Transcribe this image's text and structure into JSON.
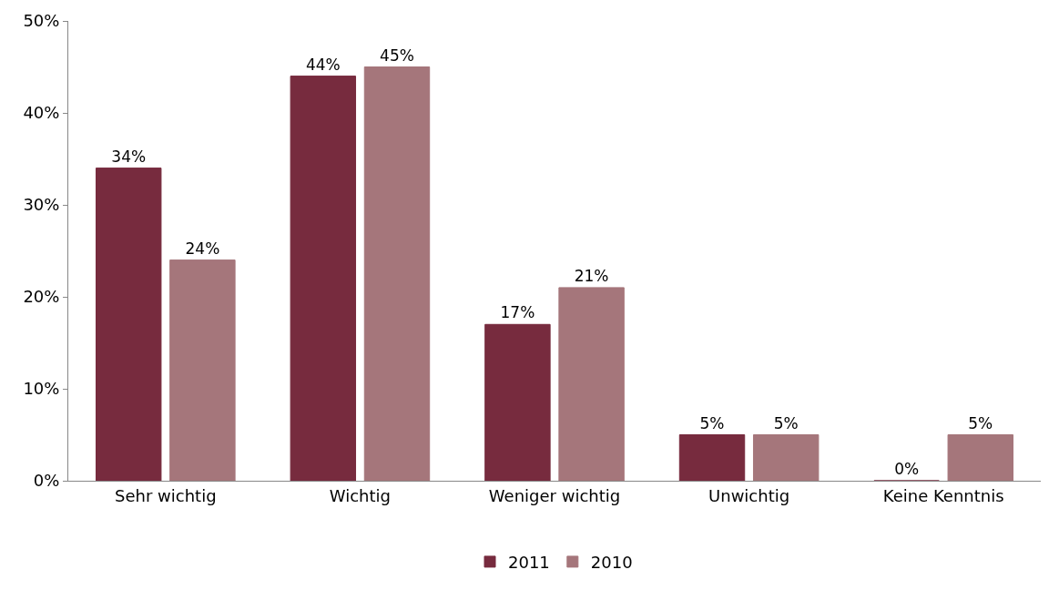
{
  "chart_data": {
    "type": "bar",
    "categories": [
      "Sehr wichtig",
      "Wichtig",
      "Weniger wichtig",
      "Unwichtig",
      "Keine Kenntnis"
    ],
    "series": [
      {
        "name": "2011",
        "color": "#772b3e",
        "values": [
          34,
          44,
          17,
          5,
          0
        ],
        "value_labels": [
          "34%",
          "44%",
          "17%",
          "5%",
          "0%"
        ]
      },
      {
        "name": "2010",
        "color": "#a5767b",
        "values": [
          24,
          45,
          21,
          5,
          5
        ],
        "value_labels": [
          "24%",
          "45%",
          "21%",
          "5%",
          "5%"
        ]
      }
    ],
    "ylim": [
      0,
      50
    ],
    "yticks": [
      {
        "value": 0,
        "label": "0%"
      },
      {
        "value": 10,
        "label": "10%"
      },
      {
        "value": 20,
        "label": "20%"
      },
      {
        "value": 30,
        "label": "30%"
      },
      {
        "value": 40,
        "label": "40%"
      },
      {
        "value": 50,
        "label": "50%"
      }
    ],
    "legend": "bottom"
  }
}
